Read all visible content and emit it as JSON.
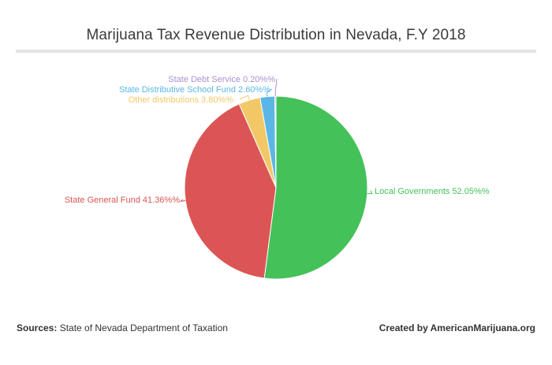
{
  "chart_data": {
    "type": "pie",
    "title": "Marijuana Tax Revenue Distribution in Nevada, F.Y 2018",
    "slices": [
      {
        "label": "Local Governments 52.05%%",
        "value": 52.05,
        "color": "#45c15a"
      },
      {
        "label": "State General Fund 41.36%%",
        "value": 41.36,
        "color": "#dc5555"
      },
      {
        "label": "Other distributions 3.80%%",
        "value": 3.8,
        "color": "#f2c867"
      },
      {
        "label": "State Distributive School Fund 2.60%%",
        "value": 2.6,
        "color": "#5ab7e5"
      },
      {
        "label": "State Debt Service 0.20%%",
        "value": 0.2,
        "color": "#ac8fd0"
      }
    ]
  },
  "footer": {
    "sources_label": "Sources:",
    "sources_text": " State of Nevada Department of Taxation",
    "credit": "Created by AmericanMarijuana.org"
  }
}
